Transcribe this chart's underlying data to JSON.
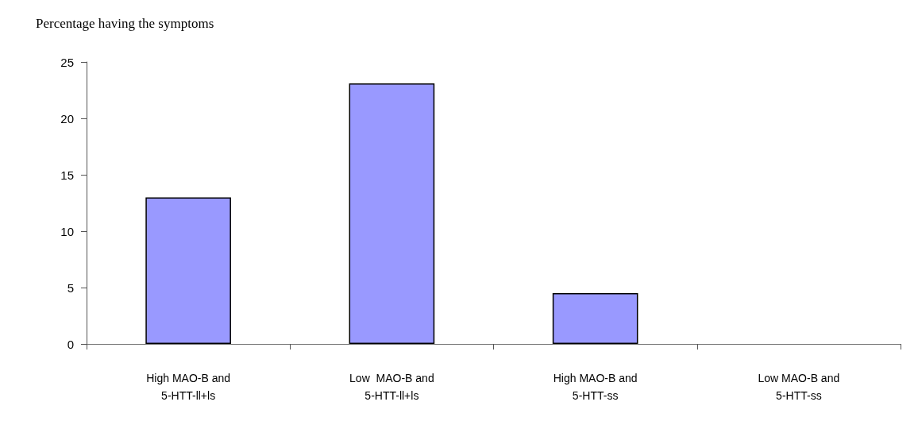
{
  "chart_data": {
    "type": "bar",
    "title": "Percentage having the symptoms",
    "categories": [
      "High MAO-B and\n5-HTT-ll+ls",
      "Low  MAO-B and\n5-HTT-ll+ls",
      "High MAO-B and\n5-HTT-ss",
      "Low MAO-B and\n5-HTT-ss"
    ],
    "values": [
      13,
      23.1,
      4.5,
      0
    ],
    "color": "#9999ff",
    "ylim": [
      0,
      25
    ],
    "yticks": [
      0,
      5,
      10,
      15,
      20,
      25
    ],
    "grid": false
  }
}
